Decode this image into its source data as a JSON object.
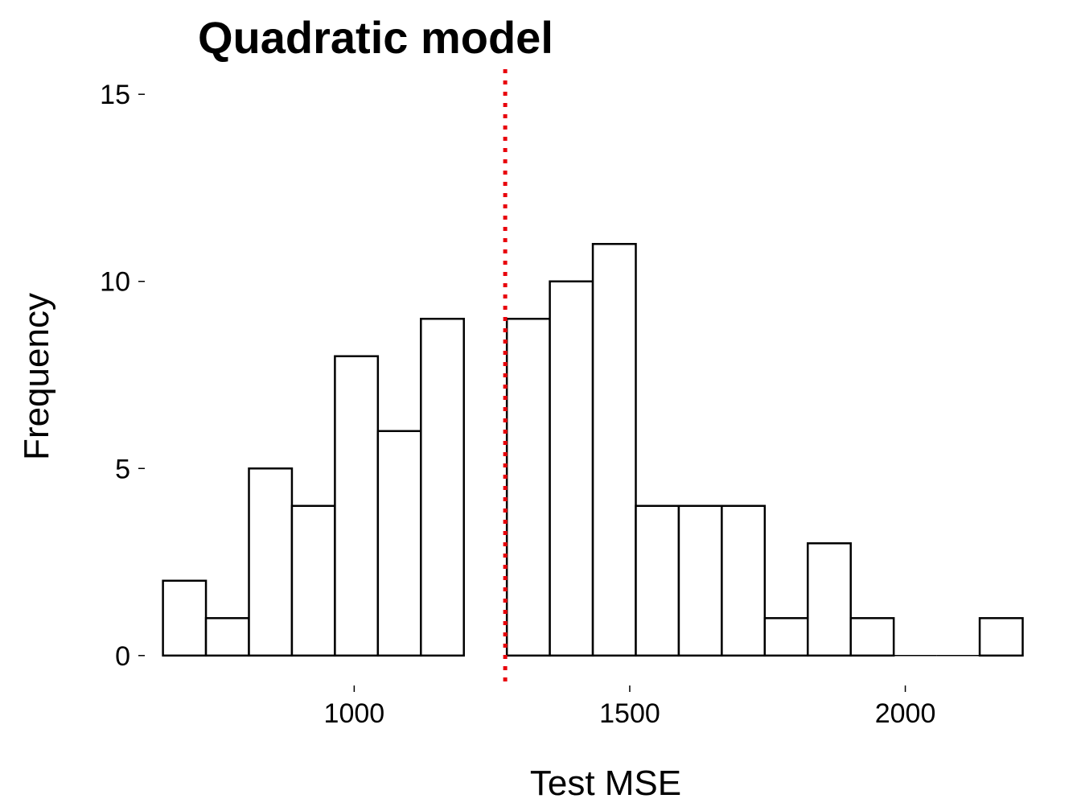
{
  "chart_data": {
    "type": "bar",
    "title": "Quadratic model",
    "xlabel": "Test MSE",
    "ylabel": "Frequency",
    "bin_width": 78,
    "bins": [
      {
        "start": 653,
        "end": 731,
        "count": 2
      },
      {
        "start": 731,
        "end": 809,
        "count": 1
      },
      {
        "start": 809,
        "end": 887,
        "count": 5
      },
      {
        "start": 887,
        "end": 965,
        "count": 4
      },
      {
        "start": 965,
        "end": 1043,
        "count": 8
      },
      {
        "start": 1043,
        "end": 1121,
        "count": 6
      },
      {
        "start": 1121,
        "end": 1199,
        "count": 9
      },
      {
        "start": 1199,
        "end": 1277,
        "count": 0
      },
      {
        "start": 1277,
        "end": 1355,
        "count": 9
      },
      {
        "start": 1355,
        "end": 1433,
        "count": 10
      },
      {
        "start": 1433,
        "end": 1511,
        "count": 11
      },
      {
        "start": 1511,
        "end": 1589,
        "count": 4
      },
      {
        "start": 1589,
        "end": 1667,
        "count": 4
      },
      {
        "start": 1667,
        "end": 1745,
        "count": 4
      },
      {
        "start": 1745,
        "end": 1823,
        "count": 1
      },
      {
        "start": 1823,
        "end": 1901,
        "count": 3
      },
      {
        "start": 1901,
        "end": 1979,
        "count": 1
      },
      {
        "start": 1979,
        "end": 2057,
        "count": 0
      },
      {
        "start": 2057,
        "end": 2135,
        "count": 0
      },
      {
        "start": 2135,
        "end": 2213,
        "count": 1
      }
    ],
    "x_ticks": [
      1000,
      1500,
      2000
    ],
    "y_ticks": [
      0,
      5,
      10,
      15
    ],
    "xlim": [
      620,
      2240
    ],
    "ylim": [
      -0.8,
      15.8
    ],
    "reference_line": {
      "x": 1274,
      "style": "dotted",
      "color": "#e8000b"
    },
    "grid": false,
    "legend": "none"
  }
}
